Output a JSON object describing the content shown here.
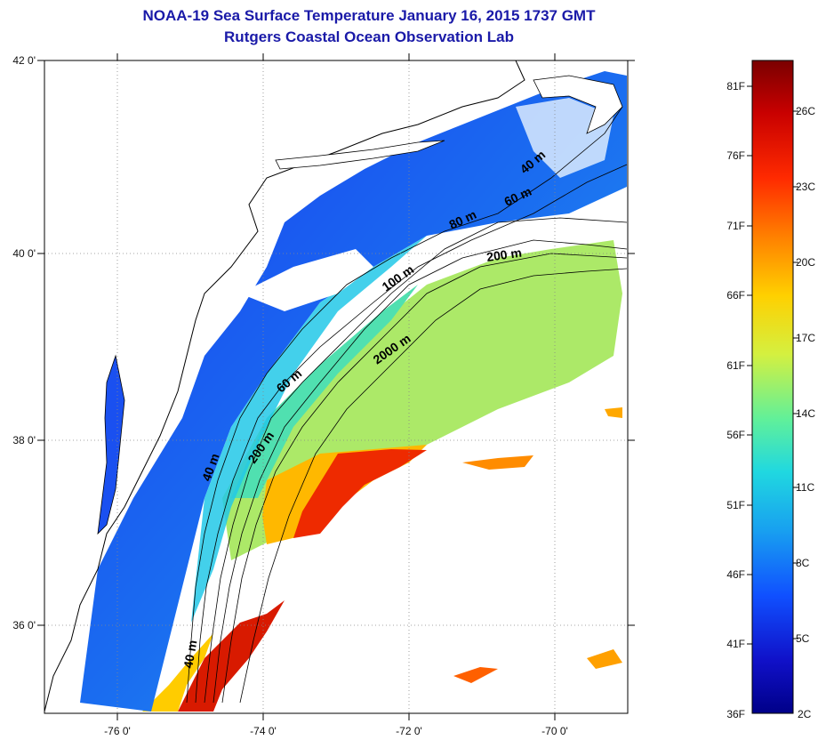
{
  "header": {
    "title": "NOAA-19 Sea Surface Temperature January 16, 2015 1737 GMT",
    "subtitle": "Rutgers Coastal Ocean Observation Lab"
  },
  "map": {
    "lon_ticks": [
      "-76 0'",
      "-74 0'",
      "-72 0'",
      "-70 0'"
    ],
    "lat_ticks": [
      "42 0'",
      "40 0'",
      "38 0'",
      "36 0'"
    ],
    "isobath_labels": [
      "40 m",
      "60 m",
      "80 m",
      "200 m",
      "100 m",
      "2000 m",
      "60 m",
      "200 m",
      "40 m",
      "40 m"
    ]
  },
  "colorbar": {
    "fahrenheit_labels": [
      "81F",
      "76F",
      "71F",
      "66F",
      "61F",
      "56F",
      "51F",
      "46F",
      "41F",
      "36F"
    ],
    "celsius_labels": [
      "26C",
      "23C",
      "20C",
      "17C",
      "14C",
      "11C",
      "8C",
      "5C",
      "2C"
    ],
    "colors": [
      "#7a0000",
      "#d40000",
      "#ff3a00",
      "#ff8800",
      "#ffd400",
      "#d8f040",
      "#70f08a",
      "#20d8d8",
      "#1aa0f0",
      "#1050ff",
      "#1010c8",
      "#000090"
    ]
  }
}
